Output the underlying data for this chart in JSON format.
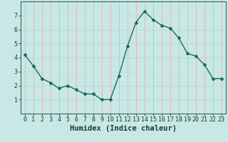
{
  "x": [
    0,
    1,
    2,
    3,
    4,
    5,
    6,
    7,
    8,
    9,
    10,
    11,
    12,
    13,
    14,
    15,
    16,
    17,
    18,
    19,
    20,
    21,
    22,
    23
  ],
  "y": [
    4.2,
    3.4,
    2.5,
    2.2,
    1.8,
    2.0,
    1.7,
    1.4,
    1.4,
    1.0,
    1.0,
    2.7,
    4.8,
    6.5,
    7.3,
    6.7,
    6.3,
    6.1,
    5.4,
    4.3,
    4.1,
    3.5,
    2.5,
    2.5
  ],
  "line_color": "#1a6b5a",
  "marker": "D",
  "marker_size": 2.0,
  "line_width": 1.0,
  "bg_color": "#c8e8e5",
  "grid_color_v": "#e8b0b0",
  "grid_color_h": "#b8d8d5",
  "xlabel": "Humidex (Indice chaleur)",
  "xlim": [
    -0.5,
    23.5
  ],
  "ylim": [
    0,
    8
  ],
  "yticks": [
    1,
    2,
    3,
    4,
    5,
    6,
    7
  ],
  "xticks": [
    0,
    1,
    2,
    3,
    4,
    5,
    6,
    7,
    8,
    9,
    10,
    11,
    12,
    13,
    14,
    15,
    16,
    17,
    18,
    19,
    20,
    21,
    22,
    23
  ],
  "xtick_labels": [
    "0",
    "1",
    "2",
    "3",
    "4",
    "5",
    "6",
    "7",
    "8",
    "9",
    "10",
    "11",
    "12",
    "13",
    "14",
    "15",
    "16",
    "17",
    "18",
    "19",
    "20",
    "21",
    "22",
    "23"
  ],
  "font_color": "#1a3a35",
  "xlabel_fontsize": 7.5,
  "tick_fontsize": 6.0
}
